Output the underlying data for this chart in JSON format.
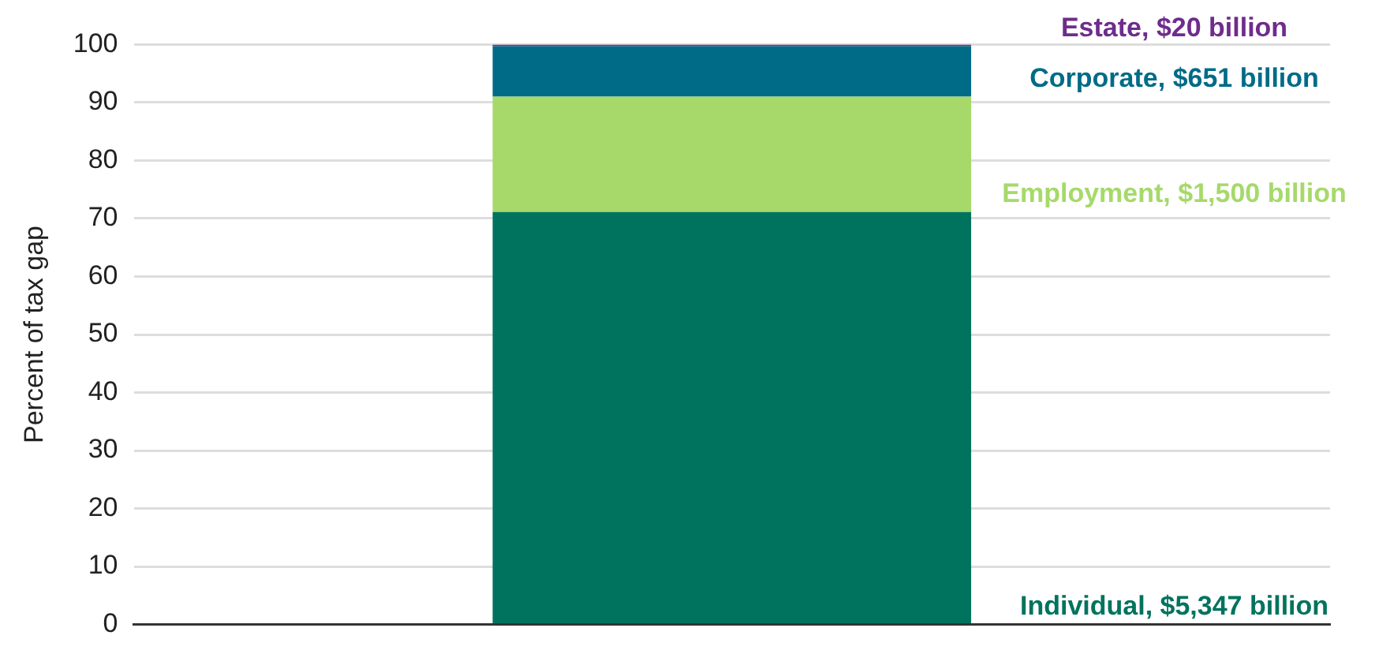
{
  "chart_data": {
    "type": "bar",
    "stacked": true,
    "ylabel": "Percent of tax gap",
    "categories": [
      null
    ],
    "series": [
      {
        "name": "Individual, $5,347 billion",
        "color": "#00735e",
        "values": [
          71.1
        ]
      },
      {
        "name": "Employment, $1,500 billion",
        "color": "#a6d96a",
        "values": [
          19.9
        ]
      },
      {
        "name": "Corporate, $651 billion",
        "color": "#006b87",
        "values": [
          8.7
        ]
      },
      {
        "name": "Estate, $20 billion",
        "color": "#6e2c8c",
        "values": [
          0.3
        ]
      }
    ],
    "ylim": [
      0,
      100
    ],
    "yticks": [
      0,
      10,
      20,
      30,
      40,
      50,
      60,
      70,
      80,
      90,
      100
    ],
    "grid": "y",
    "legend": false,
    "tick_labels": "y"
  }
}
